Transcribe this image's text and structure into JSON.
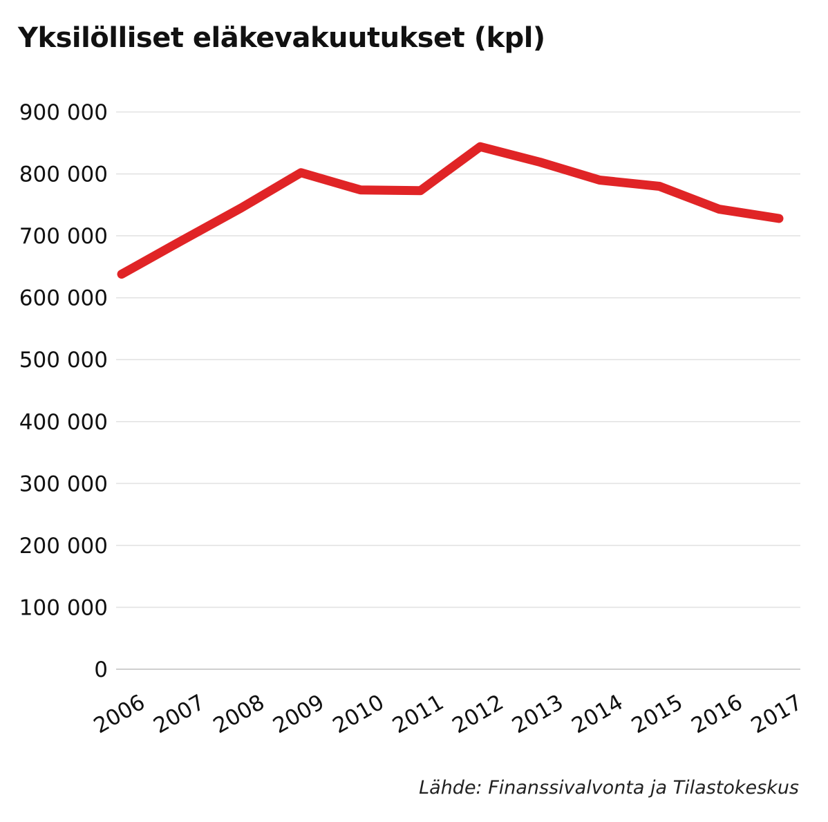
{
  "chart_data": {
    "type": "line",
    "title": "Yksilölliset eläkevakuutukset (kpl)",
    "xlabel": "",
    "ylabel": "",
    "categories": [
      "2006",
      "2007",
      "2008",
      "2009",
      "2010",
      "2011",
      "2012",
      "2013",
      "2014",
      "2015",
      "2016",
      "2017"
    ],
    "series": [
      {
        "values": [
          638000,
          692000,
          745000,
          802000,
          774000,
          773000,
          844000,
          819000,
          790000,
          780000,
          743000,
          728000
        ]
      }
    ],
    "ylim": [
      0,
      900000
    ],
    "y_ticks": [
      0,
      100000,
      200000,
      300000,
      400000,
      500000,
      600000,
      700000,
      800000,
      900000
    ],
    "y_tick_labels": [
      "0",
      "100 000",
      "200 000",
      "300 000",
      "400 000",
      "500 000",
      "600 000",
      "700 000",
      "800 000",
      "900 000"
    ],
    "grid": true,
    "legend": "none",
    "line_color": "#e02426",
    "grid_color": "#e3e3e3"
  },
  "source_text": "Lähde: Finanssivalvonta ja Tilastokeskus"
}
